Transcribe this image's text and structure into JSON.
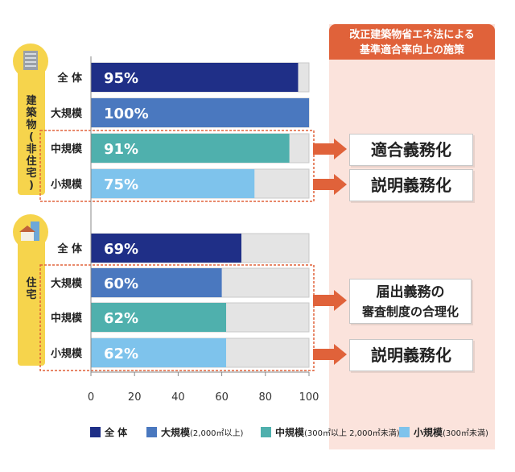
{
  "colors": {
    "all": "#1f2f87",
    "large": "#4a78bf",
    "medium": "#4fb0ad",
    "small": "#7ec3ec",
    "track": "#e4e4e4",
    "accent": "#e0623a",
    "panel_bg": "#fbe3dc",
    "group_bg": "#f6d44c"
  },
  "groups": [
    {
      "label": "建築物(非住宅)",
      "icon": "office-building-icon"
    },
    {
      "label": "住宅",
      "icon": "house-icon"
    }
  ],
  "panel": {
    "title_line1": "改正建築物省エネ法による",
    "title_line2": "基準適合率向上の施策"
  },
  "policies": [
    {
      "lines": [
        "適合義務化"
      ]
    },
    {
      "lines": [
        "説明義務化"
      ]
    },
    {
      "lines": [
        "届出義務の",
        "審査制度の合理化"
      ]
    },
    {
      "lines": [
        "説明義務化"
      ]
    }
  ],
  "legend": [
    {
      "label": "全 体",
      "sub": ""
    },
    {
      "label": "大規模",
      "sub": "(2,000㎡以上)"
    },
    {
      "label": "中規模",
      "sub": "(300㎡以上 2,000㎡未満)"
    },
    {
      "label": "小規模",
      "sub": "(300㎡未満)"
    }
  ],
  "chart_data": {
    "type": "bar",
    "orientation": "horizontal",
    "xlim": [
      0,
      100
    ],
    "xticks": [
      "0",
      "20",
      "40",
      "60",
      "80",
      "100"
    ],
    "grid": false,
    "legend_position": "bottom",
    "series": [
      {
        "name": "建築物(非住宅)",
        "categories": [
          "全 体",
          "大規模",
          "中規模",
          "小規模"
        ],
        "values": [
          95,
          100,
          91,
          75
        ],
        "labels": [
          "95%",
          "100%",
          "91%",
          "75%"
        ]
      },
      {
        "name": "住宅",
        "categories": [
          "全 体",
          "大規模",
          "中規模",
          "小規模"
        ],
        "values": [
          69,
          60,
          62,
          62
        ],
        "labels": [
          "69%",
          "60%",
          "62%",
          "62%"
        ]
      }
    ]
  }
}
